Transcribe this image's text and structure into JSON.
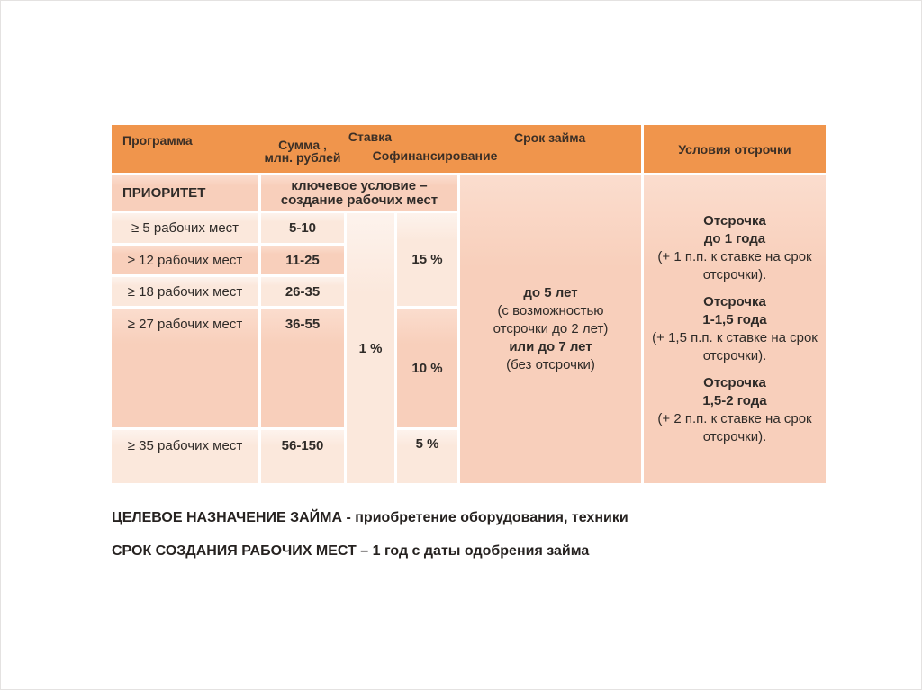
{
  "table": {
    "header": {
      "program": "Программа",
      "sum_line1": "Сумма ,",
      "sum_line2": "млн. рублей",
      "rate": "Ставка",
      "cofinancing": "Софинансирование",
      "loan_term": "Срок займа",
      "deferral": "Условия отсрочки"
    },
    "priority_row": {
      "program": "ПРИОРИТЕТ",
      "key_condition_line1": "ключевое условие –",
      "key_condition_line2": "создание рабочих мест"
    },
    "rows": [
      {
        "jobs": "≥ 5 рабочих мест",
        "sum": "5-10"
      },
      {
        "jobs": "≥ 12 рабочих мест",
        "sum": "11-25"
      },
      {
        "jobs": "≥ 18 рабочих мест",
        "sum": "26-35"
      },
      {
        "jobs": "≥ 27 рабочих мест",
        "sum": "36-55"
      },
      {
        "jobs": "≥ 35 рабочих мест",
        "sum": "56-150"
      }
    ],
    "rate_value": "1 %",
    "cofinancing_values": {
      "top": "15 %",
      "middle": "10 %",
      "bottom": "5 %"
    },
    "loan_term": {
      "line1": "до 5 лет",
      "line2": "(с возможностью",
      "line3": "отсрочки до 2 лет)",
      "line4": "или до 7 лет",
      "line5": "(без отсрочки)"
    },
    "deferral_blocks": [
      {
        "title1": "Отсрочка",
        "title2": "до 1 года",
        "note": "(+ 1 п.п. к ставке на срок отсрочки)."
      },
      {
        "title1": "Отсрочка",
        "title2": "1-1,5 года",
        "note": "(+ 1,5 п.п. к ставке на срок отсрочки)."
      },
      {
        "title1": "Отсрочка",
        "title2": "1,5-2 года",
        "note": "(+ 2 п.п. к ставке на срок отсрочки)."
      }
    ]
  },
  "footer": {
    "line1": "ЦЕЛЕВОЕ НАЗНАЧЕНИЕ ЗАЙМА - приобретение оборудования, техники",
    "line2": "СРОК СОЗДАНИЯ РАБОЧИХ МЕСТ – 1 год с даты одобрения займа"
  },
  "colors": {
    "header_bg": "#F0954C",
    "band_dark": "#F8CFBB",
    "band_light": "#FBE8DC",
    "header_text": "#3B2F26",
    "body_text": "#2F2B28"
  }
}
